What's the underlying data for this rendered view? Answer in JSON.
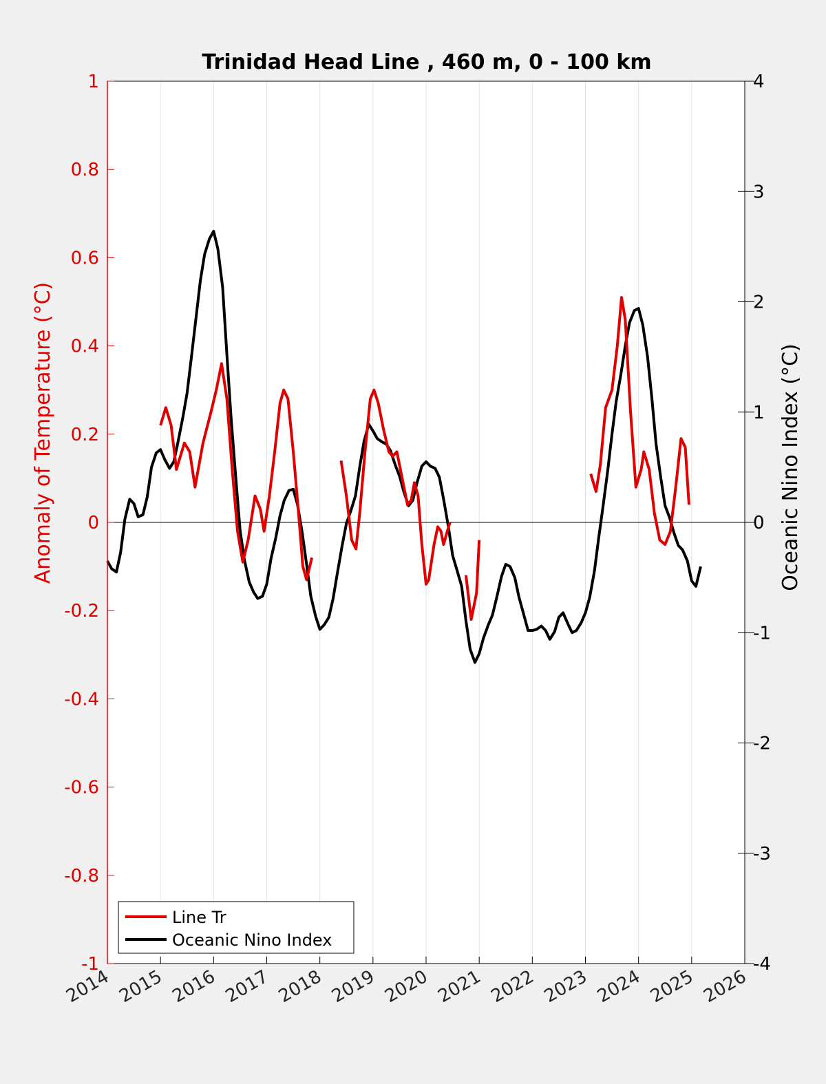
{
  "chart_data": {
    "type": "line",
    "title": "Trinidad Head Line , 460 m, 0 - 100 km",
    "xlabel": "",
    "ylabel_left": "Anomaly of Temperature (°C)",
    "ylabel_right": "Oceanic Nino Index (°C)",
    "xlim": [
      2014,
      2026
    ],
    "ylim_left": [
      -1,
      1
    ],
    "ylim_right": [
      -4,
      4
    ],
    "x_ticks": [
      "2014",
      "2015",
      "2016",
      "2017",
      "2018",
      "2019",
      "2020",
      "2021",
      "2022",
      "2023",
      "2024",
      "2025",
      "2026"
    ],
    "y_ticks_left": [
      "1",
      "0.8",
      "0.6",
      "0.4",
      "0.2",
      "0",
      "-0.2",
      "-0.4",
      "-0.6",
      "-0.8",
      "-1"
    ],
    "y_ticks_right": [
      "4",
      "3",
      "2",
      "1",
      "0",
      "-1",
      "-2",
      "-3",
      "-4"
    ],
    "grid": "vertical",
    "legend_position": "bottom-left",
    "colors": {
      "line_tr": "#e00000",
      "oni": "#000000",
      "left_axis": "#e00000",
      "right_axis": "#000000"
    },
    "series": [
      {
        "name": "Line Tr",
        "axis": "left",
        "segments": [
          [
            [
              2015.0,
              0.22
            ],
            [
              2015.1,
              0.26
            ],
            [
              2015.2,
              0.22
            ],
            [
              2015.3,
              0.12
            ],
            [
              2015.45,
              0.18
            ],
            [
              2015.55,
              0.16
            ],
            [
              2015.65,
              0.08
            ],
            [
              2015.8,
              0.18
            ],
            [
              2015.95,
              0.25
            ],
            [
              2016.05,
              0.3
            ],
            [
              2016.15,
              0.36
            ],
            [
              2016.25,
              0.28
            ],
            [
              2016.35,
              0.12
            ],
            [
              2016.45,
              -0.02
            ],
            [
              2016.55,
              -0.09
            ],
            [
              2016.65,
              -0.04
            ],
            [
              2016.78,
              0.06
            ],
            [
              2016.88,
              0.03
            ],
            [
              2016.95,
              -0.02
            ],
            [
              2017.05,
              0.06
            ],
            [
              2017.15,
              0.16
            ],
            [
              2017.25,
              0.27
            ],
            [
              2017.32,
              0.3
            ],
            [
              2017.4,
              0.28
            ],
            [
              2017.5,
              0.16
            ],
            [
              2017.6,
              0.02
            ],
            [
              2017.68,
              -0.1
            ],
            [
              2017.75,
              -0.13
            ],
            [
              2017.85,
              -0.08
            ]
          ],
          [
            [
              2018.4,
              0.14
            ],
            [
              2018.5,
              0.06
            ],
            [
              2018.6,
              -0.04
            ],
            [
              2018.68,
              -0.06
            ],
            [
              2018.75,
              0.02
            ],
            [
              2018.85,
              0.16
            ],
            [
              2018.95,
              0.28
            ],
            [
              2019.02,
              0.3
            ],
            [
              2019.1,
              0.27
            ],
            [
              2019.2,
              0.21
            ],
            [
              2019.3,
              0.16
            ],
            [
              2019.37,
              0.15
            ],
            [
              2019.45,
              0.16
            ],
            [
              2019.5,
              0.13
            ],
            [
              2019.6,
              0.07
            ],
            [
              2019.65,
              0.04
            ],
            [
              2019.72,
              0.05
            ],
            [
              2019.78,
              0.09
            ],
            [
              2019.85,
              0.06
            ],
            [
              2019.92,
              -0.05
            ],
            [
              2020.0,
              -0.14
            ],
            [
              2020.05,
              -0.13
            ],
            [
              2020.15,
              -0.05
            ],
            [
              2020.22,
              -0.01
            ],
            [
              2020.28,
              -0.02
            ],
            [
              2020.33,
              -0.05
            ],
            [
              2020.4,
              -0.02
            ],
            [
              2020.45,
              0.0
            ]
          ],
          [
            [
              2020.75,
              -0.12
            ],
            [
              2020.85,
              -0.22
            ],
            [
              2020.95,
              -0.16
            ],
            [
              2021.0,
              -0.04
            ]
          ],
          [
            [
              2023.1,
              0.11
            ],
            [
              2023.2,
              0.07
            ],
            [
              2023.28,
              0.13
            ],
            [
              2023.38,
              0.26
            ],
            [
              2023.5,
              0.3
            ],
            [
              2023.6,
              0.4
            ],
            [
              2023.68,
              0.51
            ],
            [
              2023.75,
              0.46
            ],
            [
              2023.85,
              0.25
            ],
            [
              2023.95,
              0.08
            ],
            [
              2024.05,
              0.12
            ],
            [
              2024.1,
              0.16
            ],
            [
              2024.2,
              0.12
            ],
            [
              2024.3,
              0.02
            ],
            [
              2024.4,
              -0.04
            ],
            [
              2024.5,
              -0.05
            ],
            [
              2024.6,
              -0.02
            ],
            [
              2024.7,
              0.08
            ],
            [
              2024.8,
              0.19
            ],
            [
              2024.88,
              0.17
            ],
            [
              2024.95,
              0.04
            ]
          ]
        ]
      },
      {
        "name": "Oceanic Nino Index",
        "axis": "right",
        "segments": [
          [
            [
              2014.0,
              -0.35
            ],
            [
              2014.08,
              -0.42
            ],
            [
              2014.17,
              -0.45
            ],
            [
              2014.25,
              -0.27
            ],
            [
              2014.33,
              0.03
            ],
            [
              2014.42,
              0.21
            ],
            [
              2014.5,
              0.17
            ],
            [
              2014.58,
              0.05
            ],
            [
              2014.67,
              0.07
            ],
            [
              2014.75,
              0.23
            ],
            [
              2014.83,
              0.5
            ],
            [
              2014.92,
              0.63
            ],
            [
              2015.0,
              0.66
            ],
            [
              2015.08,
              0.57
            ],
            [
              2015.17,
              0.49
            ],
            [
              2015.25,
              0.55
            ],
            [
              2015.33,
              0.73
            ],
            [
              2015.42,
              0.95
            ],
            [
              2015.5,
              1.17
            ],
            [
              2015.58,
              1.49
            ],
            [
              2015.67,
              1.86
            ],
            [
              2015.75,
              2.19
            ],
            [
              2015.83,
              2.43
            ],
            [
              2015.92,
              2.57
            ],
            [
              2016.0,
              2.64
            ],
            [
              2016.08,
              2.48
            ],
            [
              2016.17,
              2.13
            ],
            [
              2016.25,
              1.52
            ],
            [
              2016.33,
              0.94
            ],
            [
              2016.42,
              0.39
            ],
            [
              2016.5,
              -0.08
            ],
            [
              2016.58,
              -0.34
            ],
            [
              2016.67,
              -0.54
            ],
            [
              2016.75,
              -0.63
            ],
            [
              2016.83,
              -0.69
            ],
            [
              2016.92,
              -0.67
            ],
            [
              2017.0,
              -0.56
            ],
            [
              2017.08,
              -0.33
            ],
            [
              2017.17,
              -0.14
            ],
            [
              2017.25,
              0.06
            ],
            [
              2017.33,
              0.2
            ],
            [
              2017.42,
              0.29
            ],
            [
              2017.5,
              0.3
            ],
            [
              2017.58,
              0.16
            ],
            [
              2017.67,
              -0.1
            ],
            [
              2017.75,
              -0.38
            ],
            [
              2017.83,
              -0.67
            ],
            [
              2017.92,
              -0.85
            ],
            [
              2018.0,
              -0.97
            ],
            [
              2018.08,
              -0.93
            ],
            [
              2018.17,
              -0.86
            ],
            [
              2018.25,
              -0.69
            ],
            [
              2018.33,
              -0.46
            ],
            [
              2018.42,
              -0.21
            ],
            [
              2018.5,
              -0.01
            ],
            [
              2018.58,
              0.1
            ],
            [
              2018.67,
              0.24
            ],
            [
              2018.75,
              0.5
            ],
            [
              2018.83,
              0.73
            ],
            [
              2018.92,
              0.89
            ],
            [
              2019.0,
              0.83
            ],
            [
              2019.08,
              0.76
            ],
            [
              2019.17,
              0.73
            ],
            [
              2019.25,
              0.71
            ],
            [
              2019.33,
              0.65
            ],
            [
              2019.42,
              0.52
            ],
            [
              2019.5,
              0.42
            ],
            [
              2019.58,
              0.28
            ],
            [
              2019.67,
              0.15
            ],
            [
              2019.75,
              0.2
            ],
            [
              2019.83,
              0.36
            ],
            [
              2019.92,
              0.51
            ],
            [
              2020.0,
              0.55
            ],
            [
              2020.08,
              0.51
            ],
            [
              2020.17,
              0.49
            ],
            [
              2020.25,
              0.41
            ],
            [
              2020.33,
              0.21
            ],
            [
              2020.42,
              -0.04
            ],
            [
              2020.5,
              -0.3
            ],
            [
              2020.58,
              -0.43
            ],
            [
              2020.67,
              -0.58
            ],
            [
              2020.75,
              -0.89
            ],
            [
              2020.83,
              -1.15
            ],
            [
              2020.92,
              -1.27
            ],
            [
              2021.0,
              -1.19
            ],
            [
              2021.08,
              -1.05
            ],
            [
              2021.17,
              -0.93
            ],
            [
              2021.25,
              -0.84
            ],
            [
              2021.33,
              -0.68
            ],
            [
              2021.42,
              -0.49
            ],
            [
              2021.5,
              -0.38
            ],
            [
              2021.58,
              -0.4
            ],
            [
              2021.67,
              -0.5
            ],
            [
              2021.75,
              -0.68
            ],
            [
              2021.83,
              -0.82
            ],
            [
              2021.92,
              -0.98
            ],
            [
              2022.0,
              -0.98
            ],
            [
              2022.08,
              -0.97
            ],
            [
              2022.17,
              -0.94
            ],
            [
              2022.25,
              -0.98
            ],
            [
              2022.33,
              -1.06
            ],
            [
              2022.42,
              -0.99
            ],
            [
              2022.5,
              -0.86
            ],
            [
              2022.58,
              -0.82
            ],
            [
              2022.67,
              -0.92
            ],
            [
              2022.75,
              -1.0
            ],
            [
              2022.83,
              -0.98
            ],
            [
              2022.92,
              -0.91
            ],
            [
              2023.0,
              -0.82
            ],
            [
              2023.08,
              -0.68
            ],
            [
              2023.17,
              -0.44
            ],
            [
              2023.25,
              -0.14
            ],
            [
              2023.33,
              0.14
            ],
            [
              2023.42,
              0.47
            ],
            [
              2023.5,
              0.8
            ],
            [
              2023.58,
              1.1
            ],
            [
              2023.67,
              1.35
            ],
            [
              2023.75,
              1.6
            ],
            [
              2023.83,
              1.81
            ],
            [
              2023.92,
              1.92
            ],
            [
              2024.0,
              1.94
            ],
            [
              2024.08,
              1.79
            ],
            [
              2024.17,
              1.5
            ],
            [
              2024.25,
              1.13
            ],
            [
              2024.33,
              0.71
            ],
            [
              2024.42,
              0.4
            ],
            [
              2024.5,
              0.15
            ],
            [
              2024.58,
              0.05
            ],
            [
              2024.67,
              -0.1
            ],
            [
              2024.75,
              -0.21
            ],
            [
              2024.83,
              -0.25
            ],
            [
              2024.92,
              -0.35
            ],
            [
              2025.0,
              -0.53
            ],
            [
              2025.08,
              -0.58
            ],
            [
              2025.17,
              -0.4
            ]
          ]
        ]
      }
    ]
  }
}
